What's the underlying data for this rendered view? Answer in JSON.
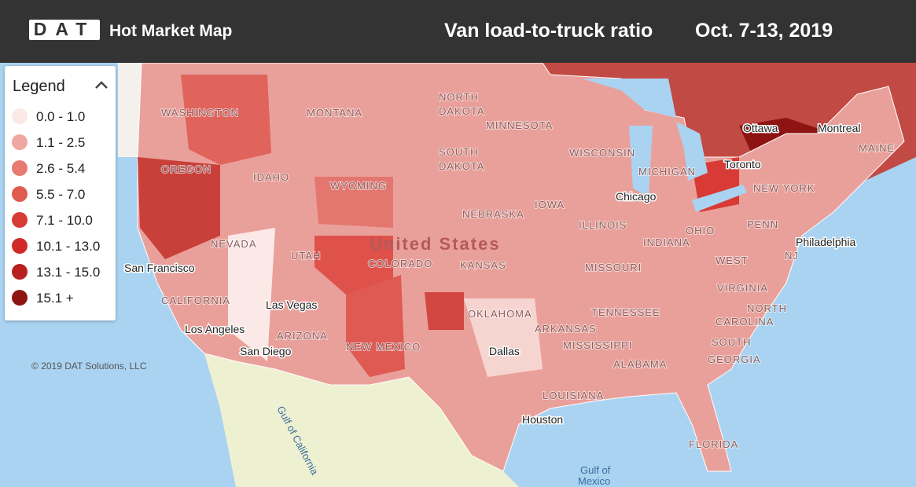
{
  "header": {
    "logo": "DAT",
    "app_title": "Hot Market Map",
    "metric": "Van load-to-truck ratio",
    "date_range": "Oct. 7-13, 2019"
  },
  "legend": {
    "title": "Legend",
    "items": [
      {
        "label": "0.0 - 1.0",
        "color": "#fbe9e7"
      },
      {
        "label": "1.1 - 2.5",
        "color": "#f1a7a1"
      },
      {
        "label": "2.6 - 5.4",
        "color": "#e77b72"
      },
      {
        "label": "5.5 - 7.0",
        "color": "#e05a50"
      },
      {
        "label": "7.1 - 10.0",
        "color": "#d83b35"
      },
      {
        "label": "10.1 - 13.0",
        "color": "#cf2a27"
      },
      {
        "label": "13.1 - 15.0",
        "color": "#b8201f"
      },
      {
        "label": "15.1 +",
        "color": "#8e1414"
      }
    ]
  },
  "map": {
    "copyright": "© 2019 DAT Solutions, LLC",
    "labels": [
      "WASHINGTON",
      "MONTANA",
      "NORTH",
      "DAKOTA",
      "MINNESOTA",
      "OREGON",
      "IDAHO",
      "WYOMING",
      "SOUTH",
      "DAKOTA",
      "WISCONSIN",
      "MICHIGAN",
      "NEVADA",
      "UTAH",
      "United States",
      "COLORADO",
      "NEBRASKA",
      "IOWA",
      "ILLINOIS",
      "INDIANA",
      "OHIO",
      "KANSAS",
      "MISSOURI",
      "San Francisco",
      "CALIFORNIA",
      "Las Vegas",
      "OKLAHOMA",
      "ARKANSAS",
      "TENNESSEE",
      "Los Angeles",
      "ARIZONA",
      "San Diego",
      "NEW MEXICO",
      "Dallas",
      "MISSISSIPPI",
      "ALABAMA",
      "LOUISIANA",
      "Houston",
      "FLORIDA",
      "Gulf of California",
      "Gulf of",
      "Mexico",
      "Chicago",
      "Toronto",
      "Ottawa",
      "Montreal",
      "MAINE",
      "NEW YORK",
      "PENN",
      "Philadelphia",
      "NJ",
      "WEST",
      "VIRGINIA",
      "NORTH",
      "CAROLINA",
      "SOUTH",
      "GEORGIA"
    ]
  }
}
